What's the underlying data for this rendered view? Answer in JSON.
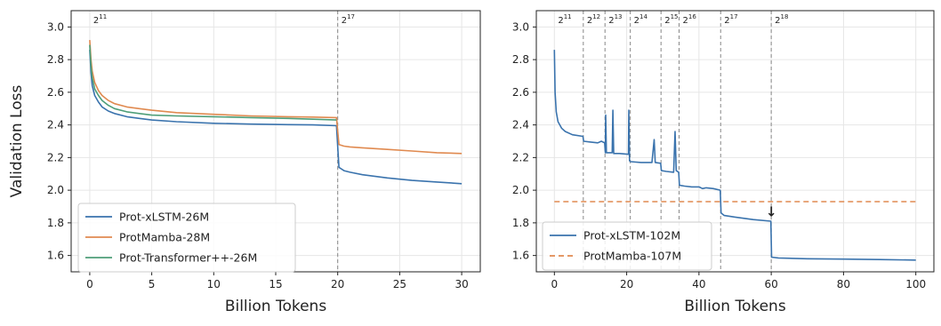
{
  "chart_data": [
    {
      "type": "line",
      "xlabel": "Billion Tokens",
      "ylabel": "Validation Loss",
      "xlim": [
        -1.5,
        31.5
      ],
      "ylim": [
        1.5,
        3.1
      ],
      "x_ticks": [
        "0",
        "5",
        "10",
        "15",
        "20",
        "25",
        "30"
      ],
      "y_ticks": [
        "1.6",
        "1.8",
        "2.0",
        "2.2",
        "2.4",
        "2.6",
        "2.8",
        "3.0"
      ],
      "grid": true,
      "legend_position": "lower-left",
      "context_markers": [
        {
          "x": 0,
          "base": "2",
          "exp": "11",
          "dashed": false
        },
        {
          "x": 20,
          "base": "2",
          "exp": "17",
          "dashed": true
        }
      ],
      "series": [
        {
          "name": "Prot-xLSTM-26M",
          "color": "#3a73ad",
          "dash": "solid",
          "points": [
            [
              0,
              2.86
            ],
            [
              0.1,
              2.72
            ],
            [
              0.2,
              2.64
            ],
            [
              0.4,
              2.58
            ],
            [
              0.7,
              2.54
            ],
            [
              1,
              2.51
            ],
            [
              1.5,
              2.485
            ],
            [
              2,
              2.47
            ],
            [
              3,
              2.45
            ],
            [
              4,
              2.44
            ],
            [
              5,
              2.43
            ],
            [
              7,
              2.42
            ],
            [
              10,
              2.41
            ],
            [
              13,
              2.405
            ],
            [
              16,
              2.402
            ],
            [
              18,
              2.4
            ],
            [
              19.9,
              2.395
            ],
            [
              20.1,
              2.14
            ],
            [
              20.5,
              2.12
            ],
            [
              21,
              2.11
            ],
            [
              22,
              2.095
            ],
            [
              24,
              2.075
            ],
            [
              26,
              2.06
            ],
            [
              28,
              2.05
            ],
            [
              30,
              2.04
            ]
          ]
        },
        {
          "name": "ProtMamba-28M",
          "color": "#e08a50",
          "dash": "solid",
          "points": [
            [
              0,
              2.92
            ],
            [
              0.1,
              2.8
            ],
            [
              0.2,
              2.73
            ],
            [
              0.4,
              2.66
            ],
            [
              0.7,
              2.61
            ],
            [
              1,
              2.58
            ],
            [
              1.5,
              2.55
            ],
            [
              2,
              2.53
            ],
            [
              3,
              2.51
            ],
            [
              4,
              2.5
            ],
            [
              5,
              2.49
            ],
            [
              7,
              2.475
            ],
            [
              10,
              2.465
            ],
            [
              13,
              2.455
            ],
            [
              16,
              2.45
            ],
            [
              18,
              2.448
            ],
            [
              19.9,
              2.445
            ],
            [
              20.1,
              2.28
            ],
            [
              20.5,
              2.27
            ],
            [
              21,
              2.265
            ],
            [
              22,
              2.26
            ],
            [
              24,
              2.25
            ],
            [
              26,
              2.24
            ],
            [
              28,
              2.23
            ],
            [
              30,
              2.225
            ]
          ]
        },
        {
          "name": "Prot-Transformer++-26M",
          "color": "#4e9e78",
          "dash": "solid",
          "points": [
            [
              0,
              2.89
            ],
            [
              0.1,
              2.76
            ],
            [
              0.2,
              2.69
            ],
            [
              0.4,
              2.62
            ],
            [
              0.7,
              2.58
            ],
            [
              1,
              2.55
            ],
            [
              1.5,
              2.52
            ],
            [
              2,
              2.5
            ],
            [
              3,
              2.48
            ],
            [
              4,
              2.47
            ],
            [
              5,
              2.46
            ],
            [
              7,
              2.455
            ],
            [
              10,
              2.45
            ],
            [
              13,
              2.445
            ],
            [
              16,
              2.44
            ],
            [
              18,
              2.435
            ],
            [
              19.9,
              2.43
            ]
          ]
        }
      ]
    },
    {
      "type": "line",
      "xlabel": "Billion Tokens",
      "ylabel": "",
      "xlim": [
        -5,
        105
      ],
      "ylim": [
        1.5,
        3.1
      ],
      "x_ticks": [
        "0",
        "20",
        "40",
        "60",
        "80",
        "100"
      ],
      "y_ticks": [
        "1.6",
        "1.8",
        "2.0",
        "2.2",
        "2.4",
        "2.6",
        "2.8",
        "3.0"
      ],
      "grid": true,
      "legend_position": "lower-left",
      "context_markers": [
        {
          "x": 0,
          "base": "2",
          "exp": "11",
          "dashed": false
        },
        {
          "x": 8,
          "base": "2",
          "exp": "12",
          "dashed": true
        },
        {
          "x": 14,
          "base": "2",
          "exp": "13",
          "dashed": true
        },
        {
          "x": 21,
          "base": "2",
          "exp": "14",
          "dashed": true
        },
        {
          "x": 29.5,
          "base": "2",
          "exp": "15",
          "dashed": true
        },
        {
          "x": 34.5,
          "base": "2",
          "exp": "16",
          "dashed": true
        },
        {
          "x": 46,
          "base": "2",
          "exp": "17",
          "dashed": true
        },
        {
          "x": 60,
          "base": "2",
          "exp": "18",
          "dashed": true
        }
      ],
      "annotation": {
        "text": "↓",
        "x": 60,
        "y": 1.84
      },
      "series": [
        {
          "name": "Prot-xLSTM-102M",
          "color": "#3a73ad",
          "dash": "solid",
          "points": [
            [
              0,
              2.86
            ],
            [
              0.2,
              2.6
            ],
            [
              0.5,
              2.48
            ],
            [
              1,
              2.42
            ],
            [
              2,
              2.38
            ],
            [
              3,
              2.36
            ],
            [
              5,
              2.34
            ],
            [
              7.9,
              2.33
            ],
            [
              8.1,
              2.3
            ],
            [
              10,
              2.295
            ],
            [
              12,
              2.29
            ],
            [
              13,
              2.3
            ],
            [
              13.9,
              2.29
            ],
            [
              14.1,
              2.23
            ],
            [
              14.2,
              2.46
            ],
            [
              14.4,
              2.23
            ],
            [
              16,
              2.23
            ],
            [
              16.2,
              2.49
            ],
            [
              16.4,
              2.225
            ],
            [
              18,
              2.225
            ],
            [
              20.5,
              2.22
            ],
            [
              20.6,
              2.49
            ],
            [
              20.8,
              2.18
            ],
            [
              21.1,
              2.175
            ],
            [
              24,
              2.17
            ],
            [
              27,
              2.17
            ],
            [
              27.6,
              2.31
            ],
            [
              27.9,
              2.17
            ],
            [
              29.4,
              2.165
            ],
            [
              29.6,
              2.12
            ],
            [
              31,
              2.115
            ],
            [
              33,
              2.11
            ],
            [
              33.4,
              2.36
            ],
            [
              33.7,
              2.12
            ],
            [
              34.4,
              2.11
            ],
            [
              34.6,
              2.03
            ],
            [
              36,
              2.025
            ],
            [
              38,
              2.02
            ],
            [
              40,
              2.02
            ],
            [
              41,
              2.01
            ],
            [
              42,
              2.015
            ],
            [
              44,
              2.01
            ],
            [
              45.9,
              2.0
            ],
            [
              46.1,
              1.86
            ],
            [
              47,
              1.845
            ],
            [
              50,
              1.835
            ],
            [
              55,
              1.82
            ],
            [
              59.9,
              1.81
            ],
            [
              60.1,
              1.59
            ],
            [
              62,
              1.585
            ],
            [
              70,
              1.58
            ],
            [
              80,
              1.578
            ],
            [
              90,
              1.575
            ],
            [
              100,
              1.572
            ]
          ]
        },
        {
          "name": "ProtMamba-107M",
          "color": "#e08a50",
          "dash": "dashed",
          "points": [
            [
              0,
              1.93
            ],
            [
              100,
              1.93
            ]
          ]
        }
      ]
    }
  ]
}
